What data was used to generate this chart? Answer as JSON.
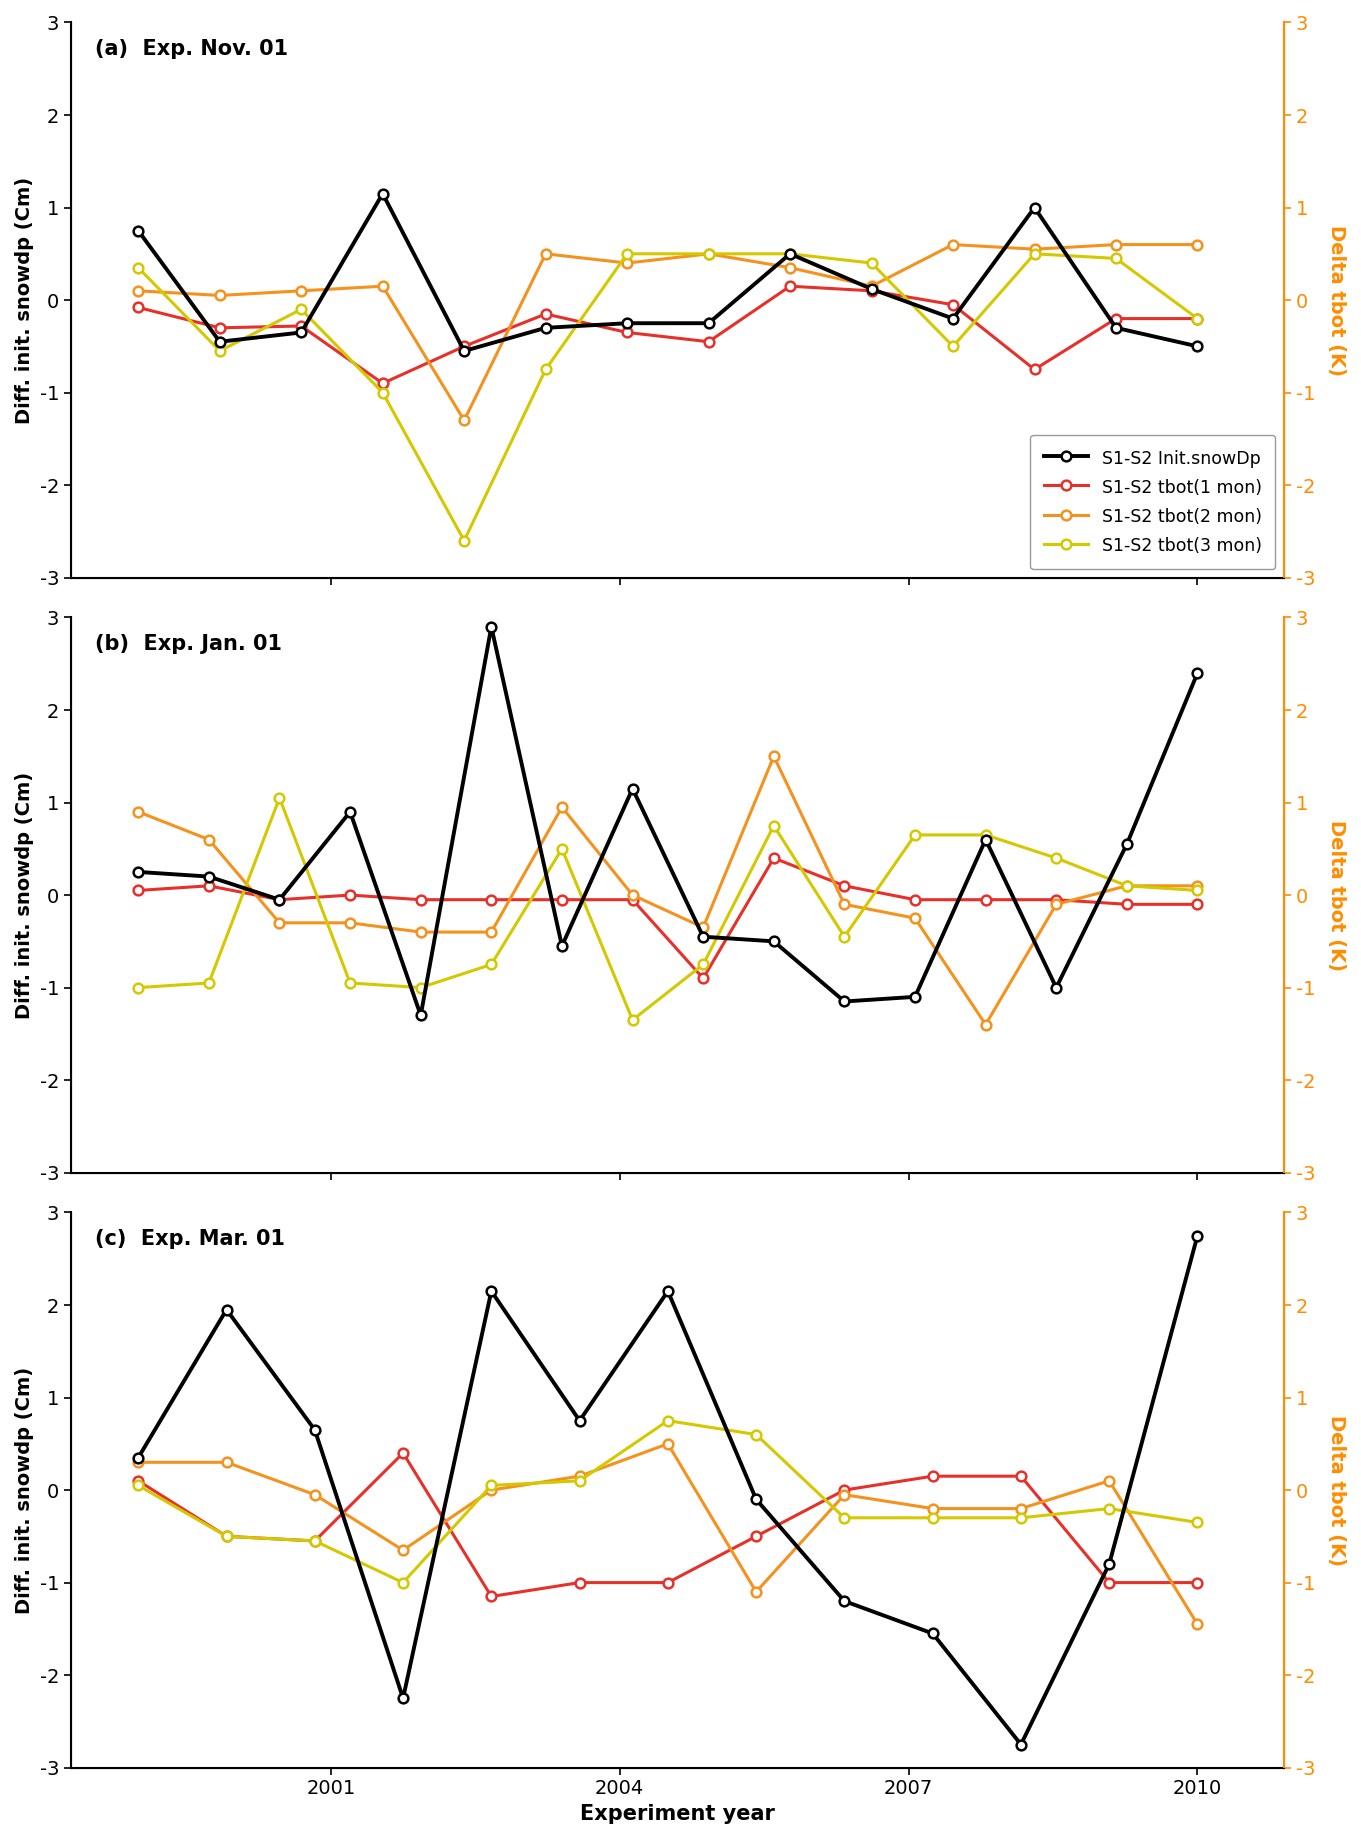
{
  "panels": [
    {
      "title": "(a)  Exp. Nov. 01",
      "snow": [
        0.75,
        -0.45,
        -0.35,
        1.15,
        -0.55,
        -0.3,
        -0.25,
        -0.25,
        0.5,
        0.12,
        -0.2,
        1.0,
        -0.3,
        -0.5
      ],
      "tbot1": [
        -0.08,
        -0.3,
        -0.28,
        -0.9,
        -0.5,
        -0.15,
        -0.35,
        -0.45,
        0.15,
        0.1,
        -0.05,
        -0.75,
        -0.2,
        -0.2
      ],
      "tbot2": [
        0.1,
        0.05,
        0.1,
        0.15,
        -1.3,
        0.5,
        0.4,
        0.5,
        0.35,
        0.15,
        0.6,
        0.55,
        0.6,
        0.6
      ],
      "tbot3": [
        0.35,
        -0.55,
        -0.1,
        -1.0,
        -2.6,
        -0.75,
        0.5,
        0.5,
        0.5,
        0.4,
        -0.5,
        0.5,
        0.45,
        -0.2
      ],
      "show_legend": 1
    },
    {
      "title": "(b)  Exp. Jan. 01",
      "snow": [
        0.25,
        0.2,
        -0.05,
        0.9,
        -1.3,
        2.9,
        -0.55,
        1.15,
        -0.45,
        -0.5,
        -1.15,
        -1.1,
        0.6,
        -1.0,
        0.55,
        2.4
      ],
      "tbot1": [
        0.05,
        0.1,
        -0.05,
        0.0,
        -0.05,
        -0.05,
        -0.05,
        -0.05,
        -0.9,
        0.4,
        0.1,
        -0.05,
        -0.05,
        -0.05,
        -0.1,
        -0.1
      ],
      "tbot2": [
        0.9,
        0.6,
        -0.3,
        -0.3,
        -0.4,
        -0.4,
        0.95,
        0.0,
        -0.35,
        1.5,
        -0.1,
        -0.25,
        -1.4,
        -0.1,
        0.1,
        0.1
      ],
      "tbot3": [
        -1.0,
        -0.95,
        1.05,
        -0.95,
        -1.0,
        -0.75,
        0.5,
        -1.35,
        -0.75,
        0.75,
        -0.45,
        0.65,
        0.65,
        0.4,
        0.1,
        0.05
      ],
      "show_legend": 0
    },
    {
      "title": "(c)  Exp. Mar. 01",
      "snow": [
        0.35,
        1.95,
        0.65,
        -2.25,
        2.15,
        0.75,
        2.15,
        -0.1,
        -1.2,
        -1.55,
        -2.75,
        -0.8,
        2.75
      ],
      "tbot1": [
        0.1,
        -0.5,
        -0.55,
        0.4,
        -1.15,
        -1.0,
        -1.0,
        -0.5,
        0.0,
        0.15,
        0.15,
        -1.0,
        -1.0
      ],
      "tbot2": [
        0.3,
        0.3,
        -0.05,
        -0.65,
        0.0,
        0.15,
        0.5,
        -1.1,
        -0.05,
        -0.2,
        -0.2,
        0.1,
        -1.45
      ],
      "tbot3": [
        0.05,
        -0.5,
        -0.55,
        -1.0,
        0.05,
        0.1,
        0.75,
        0.6,
        -0.3,
        -0.3,
        -0.3,
        -0.2,
        -0.35
      ],
      "show_legend": 0
    }
  ],
  "colors": {
    "snow": "#000000",
    "tbot1": "#E8302A",
    "tbot2": "#F5921E",
    "tbot3": "#D4C800"
  },
  "legend_labels": [
    "S1-S2 Init.snowDp",
    "S1-S2 tbot(1 mon)",
    "S1-S2 tbot(2 mon)",
    "S1-S2 tbot(3 mon)"
  ],
  "ylabel_left": "Diff. init. snowdp (Cm)",
  "ylabel_right": "Delta tbot (K)",
  "xlabel": "Experiment year",
  "ylim": [
    -3,
    3
  ],
  "yticks": [
    -3,
    -2,
    -1,
    0,
    1,
    2,
    3
  ],
  "xtick_labels": [
    2001,
    2004,
    2007,
    2010
  ],
  "x_start": 1999,
  "x_end": 2010,
  "x_lim": [
    1998.3,
    2010.9
  ]
}
